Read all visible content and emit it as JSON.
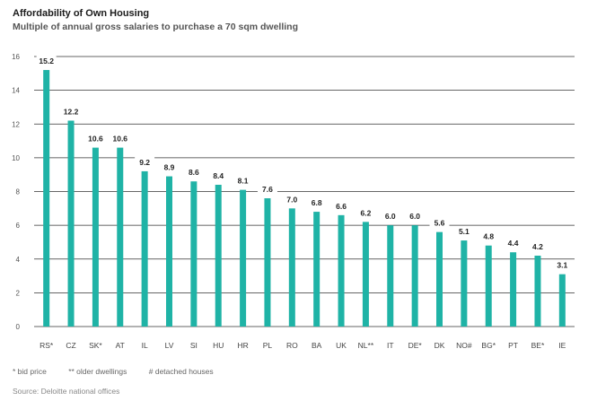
{
  "header": {
    "title": "Affordability of Own Housing",
    "subtitle": "Multiple of annual gross salaries to purchase a 70 sqm dwelling"
  },
  "chart_data": {
    "type": "bar",
    "title": "Affordability of Own Housing",
    "subtitle": "Multiple of annual gross salaries to purchase a 70 sqm dwelling",
    "xlabel": "",
    "ylabel": "",
    "categories": [
      "RS*",
      "CZ",
      "SK*",
      "AT",
      "IL",
      "LV",
      "SI",
      "HU",
      "HR",
      "PL",
      "RO",
      "BA",
      "UK",
      "NL**",
      "IT",
      "DE*",
      "DK",
      "NO#",
      "BG*",
      "PT",
      "BE*",
      "IE"
    ],
    "values": [
      15.2,
      12.2,
      10.6,
      10.6,
      9.2,
      8.9,
      8.6,
      8.4,
      8.1,
      7.6,
      7.0,
      6.8,
      6.6,
      6.2,
      6.0,
      6.0,
      5.6,
      5.1,
      4.8,
      4.4,
      4.2,
      3.1
    ],
    "value_labels": [
      "15.2",
      "12.2",
      "10.6",
      "10.6",
      "9.2",
      "8.9",
      "8.6",
      "8.4",
      "8.1",
      "7.6",
      "7.0",
      "6.8",
      "6.6",
      "6.2",
      "6.0",
      "6.0",
      "5.6",
      "5.1",
      "4.8",
      "4.4",
      "4.2",
      "3.1"
    ],
    "yticks": [
      0,
      2,
      4,
      6,
      8,
      10,
      12,
      14,
      16
    ],
    "ylim": [
      0,
      16
    ],
    "grid": true,
    "bar_color": "#1fb3a6",
    "grid_color": "#333333"
  },
  "notes": {
    "bid_price": "*   bid price",
    "older_dwellings": "**   older dwellings",
    "detached_houses": "#   detached houses"
  },
  "source": "Source: Deloitte national offices"
}
